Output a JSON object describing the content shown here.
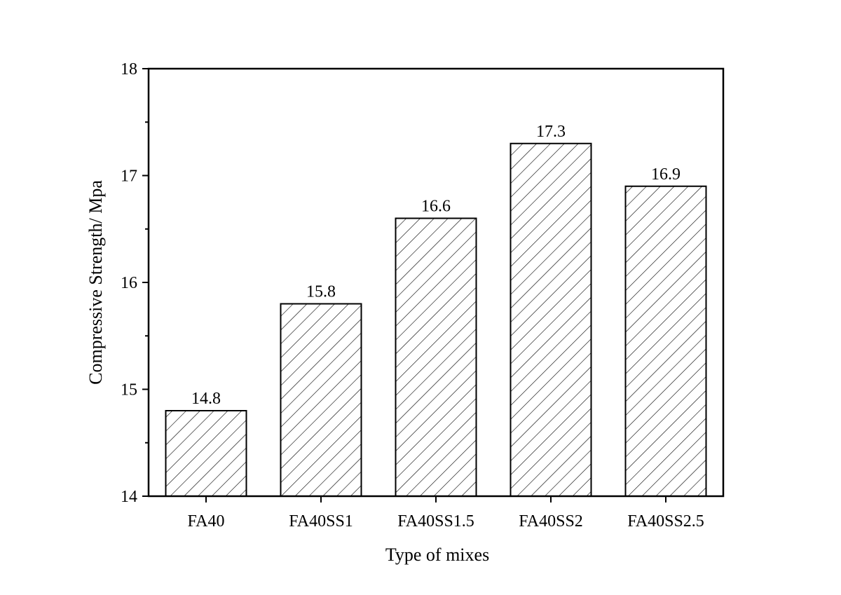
{
  "chart_data": {
    "type": "bar",
    "title": "",
    "xlabel": "Type of mixes",
    "ylabel": "Compressive Strength/ Mpa",
    "categories": [
      "FA40",
      "FA40SS1",
      "FA40SS1.5",
      "FA40SS2",
      "FA40SS2.5"
    ],
    "values": [
      14.8,
      15.8,
      16.6,
      17.3,
      16.9
    ],
    "data_labels": [
      "14.8",
      "15.8",
      "16.6",
      "17.3",
      "16.9"
    ],
    "ylim": [
      14,
      18
    ],
    "yticks": [
      14,
      15,
      16,
      17,
      18
    ],
    "grid": false,
    "legend": "none",
    "bar_fill": "diagonal hatch",
    "colors": {
      "bar_edge": "#000000",
      "hatch": "#000000",
      "background": "#ffffff"
    }
  }
}
